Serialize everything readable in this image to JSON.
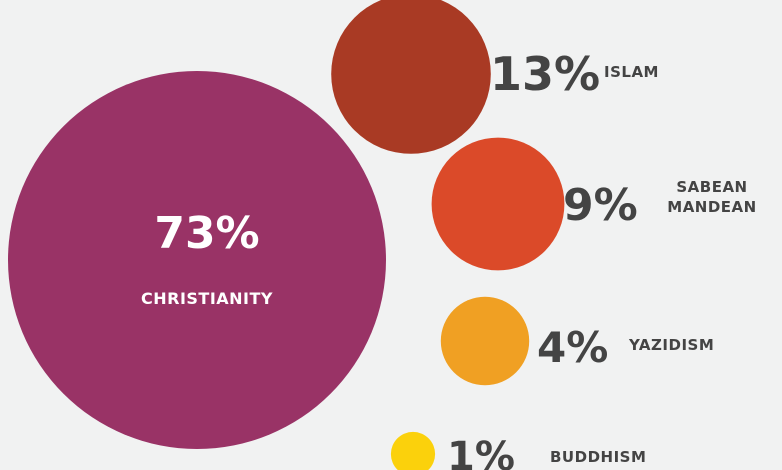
{
  "chart_data": {
    "type": "bubble",
    "values": [
      73,
      13,
      9,
      4,
      1
    ],
    "series": [
      {
        "label": "CHRISTIANITY",
        "value": 73,
        "value_text": "73%",
        "color": "#993366",
        "label_lines": [
          "CHRISTIANITY"
        ]
      },
      {
        "label": "ISLAM",
        "value": 13,
        "value_text": "13%",
        "color": "#a93a24",
        "label_lines": [
          "ISLAM"
        ]
      },
      {
        "label": "SABEAN MANDEAN",
        "value": 9,
        "value_text": "9%",
        "color": "#db4a29",
        "label_lines": [
          "SABEAN",
          "MANDEAN"
        ]
      },
      {
        "label": "YAZIDISM",
        "value": 4,
        "value_text": "4%",
        "color": "#f0a023",
        "label_lines": [
          "YAZIDISM"
        ]
      },
      {
        "label": "BUDDHISM",
        "value": 1,
        "value_text": "1%",
        "color": "#fbd10c",
        "label_lines": [
          "BUDDHISM"
        ]
      }
    ]
  }
}
